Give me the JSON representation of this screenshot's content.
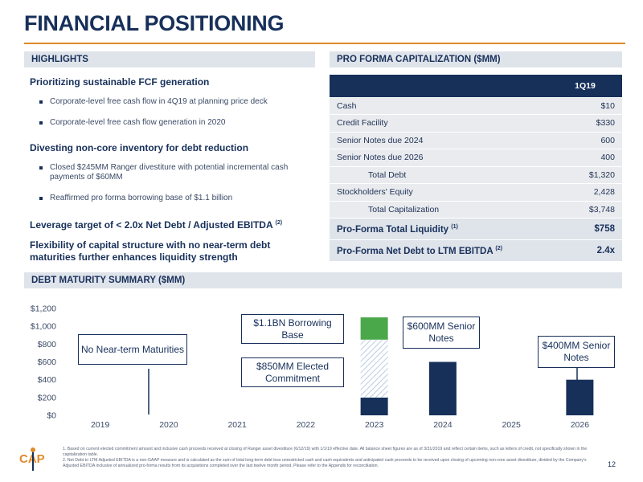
{
  "title": "FINANCIAL POSITIONING",
  "highlights": {
    "header": "HIGHLIGHTS",
    "sections": [
      {
        "heading": "Prioritizing sustainable FCF generation",
        "sup": "",
        "bullets": [
          "Corporate-level free cash flow in 4Q19 at planning price deck",
          "Corporate-level free cash flow generation in 2020"
        ]
      },
      {
        "heading": "Divesting non-core inventory for debt reduction",
        "sup": "",
        "bullets": [
          "Closed $245MM Ranger divestiture with potential incremental cash payments of $60MM",
          "Reaffirmed pro forma borrowing base of $1.1 billion"
        ]
      },
      {
        "heading": "Leverage target of < 2.0x Net Debt / Adjusted EBITDA",
        "sup": "(2)",
        "bullets": []
      },
      {
        "heading": "Flexibility of capital structure with no near-term debt maturities further enhances liquidity strength",
        "sup": "",
        "bullets": []
      }
    ]
  },
  "capitalization": {
    "header": "PRO FORMA CAPITALIZATION ($MM)",
    "column": "1Q19",
    "rows": [
      {
        "label": "Cash",
        "value": "$10"
      },
      {
        "label": "Credit Facility",
        "value": "$330"
      },
      {
        "label": "Senior Notes due 2024",
        "value": "600"
      },
      {
        "label": "Senior Notes due 2026",
        "value": "400"
      },
      {
        "label": "Total Debt",
        "value": "$1,320"
      },
      {
        "label": "Stockholders' Equity",
        "value": "2,428"
      },
      {
        "label": "Total Capitalization",
        "value": "$3,748"
      }
    ],
    "liquidity_label": "Pro-Forma Total Liquidity",
    "liquidity_sup": "(1)",
    "liquidity_value": "$758",
    "leverage_label": "Pro-Forma Net Debt to LTM EBITDA",
    "leverage_sup": "(2)",
    "leverage_value": "2.4x"
  },
  "debt_maturity": {
    "header": "DEBT MATURITY SUMMARY ($MM)",
    "callouts": {
      "no_near_term": "No Near-term Maturities",
      "borrowing_base": "$1.1BN Borrowing Base",
      "elected_commitment": "$850MM Elected Commitment",
      "senior_600": "$600MM Senior Notes",
      "senior_400": "$400MM Senior Notes"
    }
  },
  "chart_data": {
    "type": "bar",
    "categories": [
      "2019",
      "2020",
      "2021",
      "2022",
      "2023",
      "2024",
      "2025",
      "2026"
    ],
    "series": [
      {
        "values": [
          0,
          0,
          0,
          0,
          200,
          600,
          0,
          400
        ]
      },
      {
        "values": [
          0,
          0,
          0,
          0,
          650,
          0,
          0,
          0
        ]
      },
      {
        "values": [
          0,
          0,
          0,
          0,
          250,
          0,
          0,
          0
        ]
      }
    ],
    "ylim": [
      0,
      1200
    ],
    "yticks": [
      "$0",
      "$200",
      "$400",
      "$600",
      "$800",
      "$1,000",
      "$1,200"
    ],
    "ytick_values": [
      0,
      200,
      400,
      600,
      800,
      1000,
      1200
    ],
    "colors": {
      "drawn": "#17305a",
      "undrawn_hatch": "#a9c0de",
      "excess": "#4aa84a"
    },
    "grid": false,
    "xlabel": "",
    "ylabel": ""
  },
  "footnotes": [
    "1.  Based on current elected commitment amount and inclusive cash proceeds received at closing of Ranger asset divestiture (6/12/19) with 1/1/19 effective date. All balance sheet figures are as of 3/31/2019 and reflect certain items, such as letters of credit, not specifically shown in the capitalization table.",
    "2.  Net Debt to LTM Adjusted EBITDA is a non-GAAP measure and is calculated as the sum of total long-term debt less unrestricted cash and cash equivalents and anticipated cash proceeds to be received upon closing of upcoming non-core asset divestiture, divided by the Company's Adjusted EBITDA inclusive of annualized pro-forma results from its acquisitions completed over the last twelve month period. Please refer to the Appendix for reconciliation."
  ],
  "logo_text": "CAP",
  "page_number": "12"
}
